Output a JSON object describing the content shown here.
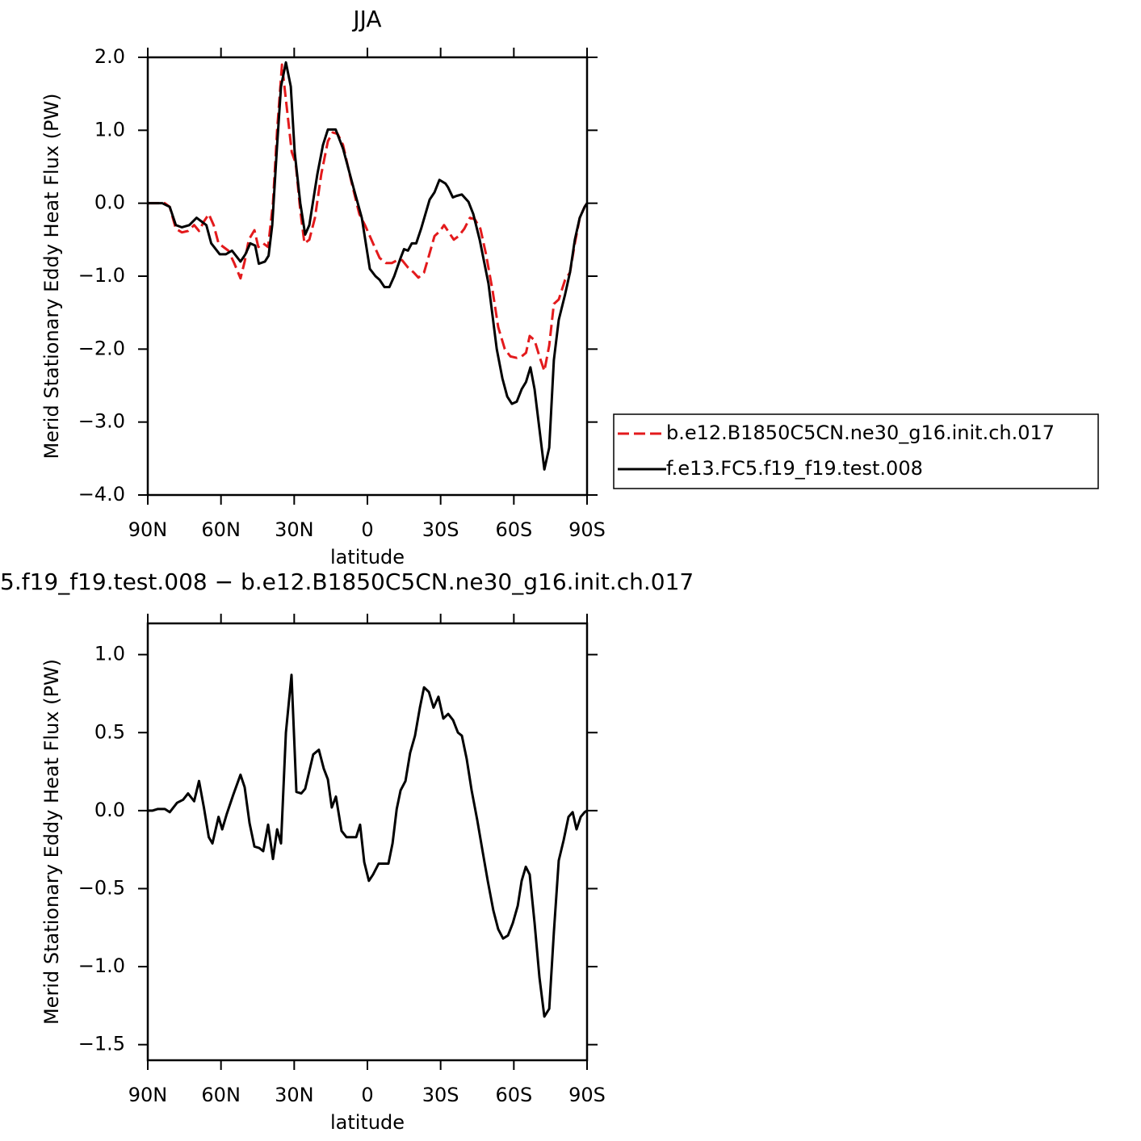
{
  "chart_data": [
    {
      "type": "line",
      "title": "JJA",
      "x_label": "latitude",
      "y_label": "Merid Stationary Eddy Heat Flux (PW)",
      "xlim": [
        90,
        -90
      ],
      "xticks": [
        {
          "value": 90,
          "label": "90N"
        },
        {
          "value": 60,
          "label": "60N"
        },
        {
          "value": 30,
          "label": "30N"
        },
        0,
        {
          "value": -30,
          "label": "30S"
        },
        {
          "value": -60,
          "label": "60S"
        },
        {
          "value": -90,
          "label": "90S"
        }
      ],
      "ylim": [
        -4,
        2
      ],
      "yticks": [
        {
          "value": 2,
          "label": "2.0"
        },
        {
          "value": 1,
          "label": "1.0"
        },
        {
          "value": 0,
          "label": "0.0"
        },
        {
          "value": -1,
          "label": "−1.0"
        },
        {
          "value": -2,
          "label": "−2.0"
        },
        {
          "value": -3,
          "label": "−3.0"
        },
        {
          "value": -4,
          "label": "−4.0"
        }
      ],
      "legend": "right",
      "series": [
        {
          "name": "b.e12.B1850C5CN.ne30_g16.init.ch.017",
          "color": "#e31a1c",
          "line_style": "dashed",
          "x": [
            90,
            83,
            81,
            78.5,
            76,
            73.5,
            71,
            69,
            67,
            65,
            63,
            61,
            59,
            57,
            54.6,
            52,
            50.3,
            48.6,
            46.3,
            44.7,
            42.7,
            40.7,
            38.7,
            37,
            35,
            33,
            31,
            29.4,
            27.5,
            25.8,
            23.8,
            21.5,
            18.9,
            16.2,
            14.2,
            12.2,
            10,
            6.6,
            3.3,
            1,
            -2.3,
            -5,
            -7.6,
            -10,
            -12.3,
            -14.2,
            -16.6,
            -19,
            -20.9,
            -23.2,
            -25.2,
            -27.5,
            -29.8,
            -31.4,
            -33.4,
            -35.4,
            -37.4,
            -39.7,
            -42,
            -44,
            -46.3,
            -48.6,
            -51.3,
            -53.6,
            -56.3,
            -58.6,
            -61.2,
            -63.2,
            -65,
            -66.5,
            -68.5,
            -70.5,
            -72.5,
            -74.5,
            -76.4,
            -78.4,
            -81,
            -83,
            -85,
            -87,
            -89,
            -90
          ],
          "values": [
            0,
            0,
            -0.05,
            -0.35,
            -0.4,
            -0.38,
            -0.3,
            -0.38,
            -0.25,
            -0.15,
            -0.3,
            -0.55,
            -0.6,
            -0.65,
            -0.82,
            -1.03,
            -0.8,
            -0.5,
            -0.37,
            -0.6,
            -0.55,
            -0.6,
            0,
            1,
            1.9,
            1.3,
            0.7,
            0.55,
            -0.1,
            -0.55,
            -0.5,
            -0.2,
            0.4,
            0.85,
            0.97,
            0.95,
            0.8,
            0.3,
            -0.15,
            -0.3,
            -0.55,
            -0.75,
            -0.82,
            -0.82,
            -0.78,
            -0.78,
            -0.88,
            -0.95,
            -1.02,
            -0.95,
            -0.72,
            -0.45,
            -0.38,
            -0.3,
            -0.4,
            -0.5,
            -0.45,
            -0.35,
            -0.2,
            -0.22,
            -0.35,
            -0.7,
            -1.2,
            -1.7,
            -2,
            -2.1,
            -2.12,
            -2.1,
            -2.05,
            -1.82,
            -1.88,
            -2.1,
            -2.3,
            -1.95,
            -1.38,
            -1.32,
            -1.05,
            -0.95,
            -0.55,
            -0.2,
            -0.05,
            0
          ]
        },
        {
          "name": "f.e13.FC5.f19_f19.test.008",
          "color": "#000000",
          "line_style": "solid",
          "x": [
            90,
            87,
            84,
            81,
            78.5,
            76,
            73,
            70,
            66,
            64,
            60.5,
            58,
            55.5,
            52,
            50,
            48,
            46,
            44.5,
            42,
            40.5,
            39,
            37,
            35.4,
            33.4,
            31.4,
            29.8,
            27.5,
            25.5,
            23.8,
            20.5,
            18.2,
            16.2,
            13,
            10,
            5.6,
            2.3,
            -1,
            -3.3,
            -5,
            -7,
            -9,
            -11,
            -13.6,
            -15,
            -16.6,
            -18.2,
            -20,
            -22,
            -25.5,
            -27.5,
            -29.5,
            -32,
            -33,
            -35,
            -36.5,
            -38.7,
            -41.4,
            -43.4,
            -46,
            -49.6,
            -53,
            -55.3,
            -57.3,
            -59.2,
            -61.2,
            -63.2,
            -65,
            -66.8,
            -68.5,
            -70.5,
            -72.5,
            -74.5,
            -76.4,
            -78.4,
            -81,
            -83,
            -85,
            -87,
            -89,
            -90
          ],
          "values": [
            0,
            0,
            0,
            -0.05,
            -0.3,
            -0.33,
            -0.3,
            -0.2,
            -0.3,
            -0.55,
            -0.7,
            -0.7,
            -0.65,
            -0.8,
            -0.7,
            -0.55,
            -0.58,
            -0.83,
            -0.8,
            -0.72,
            -0.3,
            0.8,
            1.6,
            1.93,
            1.6,
            0.7,
            0,
            -0.43,
            -0.3,
            0.4,
            0.8,
            1.01,
            1.01,
            0.75,
            0.2,
            -0.2,
            -0.9,
            -1,
            -1.05,
            -1.15,
            -1.15,
            -1,
            -0.75,
            -0.63,
            -0.65,
            -0.55,
            -0.55,
            -0.35,
            0.05,
            0.15,
            0.32,
            0.27,
            0.22,
            0.08,
            0.1,
            0.12,
            0.02,
            -0.15,
            -0.5,
            -1.1,
            -2,
            -2.4,
            -2.65,
            -2.75,
            -2.72,
            -2.55,
            -2.45,
            -2.25,
            -2.55,
            -3.1,
            -3.65,
            -3.35,
            -2.15,
            -1.6,
            -1.25,
            -0.95,
            -0.5,
            -0.2,
            -0.05,
            0
          ]
        }
      ]
    },
    {
      "type": "line",
      "title": "5.f19_f19.test.008 − b.e12.B1850C5CN.ne30_g16.init.ch.017",
      "x_label": "latitude",
      "y_label": "Merid Stationary Eddy Heat Flux (PW)",
      "xlim": [
        90,
        -90
      ],
      "xticks": [
        {
          "value": 90,
          "label": "90N"
        },
        {
          "value": 60,
          "label": "60N"
        },
        {
          "value": 30,
          "label": "30N"
        },
        0,
        {
          "value": -30,
          "label": "30S"
        },
        {
          "value": -60,
          "label": "60S"
        },
        {
          "value": -90,
          "label": "90S"
        }
      ],
      "ylim": [
        -1.6,
        1.2
      ],
      "yticks": [
        {
          "value": 1,
          "label": "1.0"
        },
        0.5,
        {
          "value": 0,
          "label": "0.0"
        },
        {
          "value": -0.5,
          "label": "−0.5"
        },
        {
          "value": -1,
          "label": "−1.0"
        },
        {
          "value": -1.5,
          "label": "−1.5"
        }
      ],
      "color": "#000000",
      "x": [
        90,
        88,
        86,
        83,
        81,
        78,
        75.5,
        73.5,
        71,
        69,
        67,
        65,
        63.5,
        61,
        59.5,
        57.6,
        55,
        52,
        50.3,
        48.3,
        46.3,
        44.3,
        42.7,
        40.7,
        38.7,
        37,
        35.4,
        33.4,
        31.1,
        29.1,
        27.1,
        25.5,
        22.2,
        19.9,
        17.9,
        16.2,
        14.6,
        12.9,
        10.6,
        8.6,
        6.3,
        4.6,
        3,
        1.3,
        -0.6,
        -2.3,
        -4.6,
        -7,
        -8.6,
        -10.3,
        -12,
        -13.6,
        -15.6,
        -17.5,
        -19.5,
        -21.5,
        -23.2,
        -25.2,
        -27.1,
        -29.1,
        -31.1,
        -33.1,
        -35.1,
        -37.1,
        -38.7,
        -40.7,
        -42.7,
        -45,
        -47.3,
        -49.3,
        -51.6,
        -53.6,
        -55.6,
        -57.6,
        -59.6,
        -61.6,
        -63.2,
        -64.9,
        -66.5,
        -68.5,
        -70.5,
        -72.5,
        -74.5,
        -76.4,
        -78.4,
        -80.4,
        -82.4,
        -84.1,
        -85.7,
        -87.4,
        -89,
        -90
      ],
      "values": [
        0,
        0,
        0.01,
        0.01,
        -0.01,
        0.05,
        0.07,
        0.11,
        0.06,
        0.19,
        0.02,
        -0.17,
        -0.21,
        -0.04,
        -0.12,
        -0.02,
        0.1,
        0.23,
        0.15,
        -0.08,
        -0.23,
        -0.24,
        -0.26,
        -0.09,
        -0.31,
        -0.12,
        -0.21,
        0.5,
        0.87,
        0.12,
        0.11,
        0.14,
        0.36,
        0.39,
        0.27,
        0.2,
        0.02,
        0.09,
        -0.13,
        -0.17,
        -0.17,
        -0.17,
        -0.09,
        -0.33,
        -0.45,
        -0.41,
        -0.34,
        -0.34,
        -0.34,
        -0.21,
        0.01,
        0.13,
        0.19,
        0.37,
        0.48,
        0.66,
        0.79,
        0.76,
        0.66,
        0.73,
        0.59,
        0.62,
        0.58,
        0.5,
        0.48,
        0.33,
        0.13,
        -0.06,
        -0.27,
        -0.45,
        -0.64,
        -0.76,
        -0.82,
        -0.8,
        -0.72,
        -0.61,
        -0.45,
        -0.36,
        -0.41,
        -0.72,
        -1.07,
        -1.32,
        -1.27,
        -0.78,
        -0.32,
        -0.19,
        -0.04,
        -0.01,
        -0.12,
        -0.04,
        -0.01,
        0
      ]
    }
  ]
}
